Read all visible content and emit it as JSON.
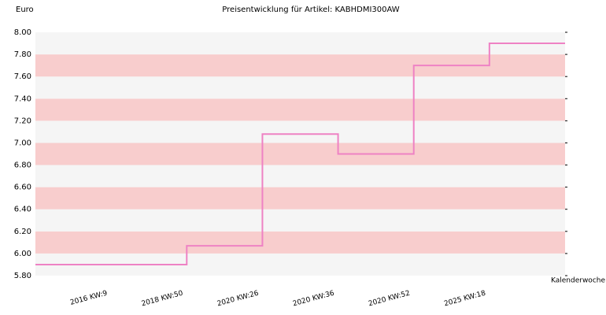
{
  "chart_data": {
    "type": "step-line",
    "title": "Preisentwicklung für Artikel: KABHDMI300AW",
    "y_label": "Euro",
    "x_label": "Kalenderwoche",
    "categories": [
      "2016 KW:9",
      "2018 KW:50",
      "2020 KW:26",
      "2020 KW:36",
      "2020 KW:52",
      "2025 KW:18"
    ],
    "values": [
      5.9,
      6.07,
      7.08,
      6.9,
      7.7,
      7.9
    ],
    "color": "#ee82c4",
    "ylim": [
      5.8,
      8.0
    ],
    "yticks": [
      {
        "value": 5.8,
        "label": "5.80"
      },
      {
        "value": 6.0,
        "label": "6.00"
      },
      {
        "value": 6.2,
        "label": "6.20"
      },
      {
        "value": 6.4,
        "label": "6.40"
      },
      {
        "value": 6.6,
        "label": "6.60"
      },
      {
        "value": 6.8,
        "label": "6.80"
      },
      {
        "value": 7.0,
        "label": "7.00"
      },
      {
        "value": 7.2,
        "label": "7.20"
      },
      {
        "value": 7.4,
        "label": "7.40"
      },
      {
        "value": 7.6,
        "label": "7.60"
      },
      {
        "value": 7.8,
        "label": "7.80"
      },
      {
        "value": 8.0,
        "label": "8.00"
      }
    ],
    "band_colors": [
      "#f5f5f5",
      "#f8cdcd"
    ]
  }
}
